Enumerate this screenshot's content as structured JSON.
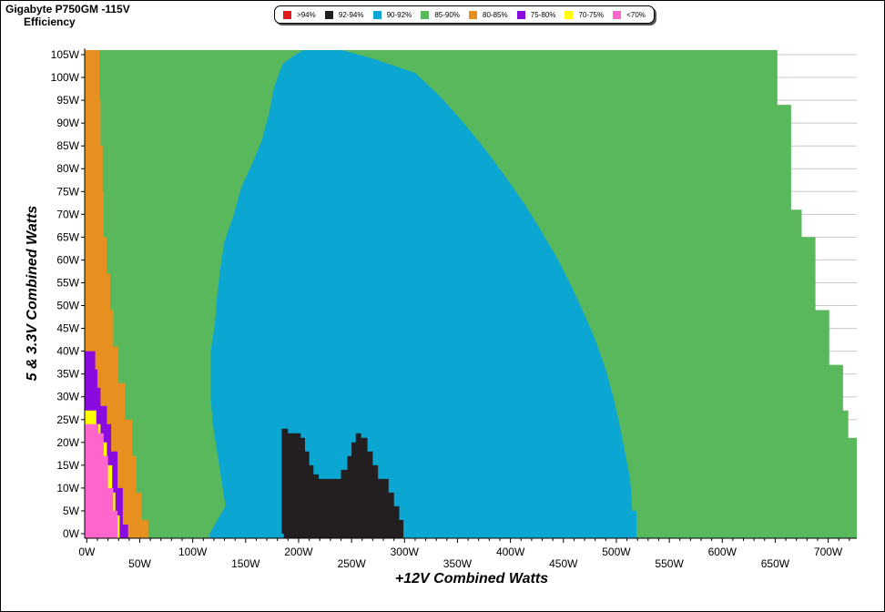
{
  "title": {
    "line1": "Gigabyte P750GM -115V",
    "line2": "Efficiency"
  },
  "legend": [
    {
      "label": ">94%",
      "color": "#e31a1c"
    },
    {
      "label": "92-94%",
      "color": "#231f20"
    },
    {
      "label": "90-92%",
      "color": "#0ba6d1"
    },
    {
      "label": "85-90%",
      "color": "#59b85c"
    },
    {
      "label": "80-85%",
      "color": "#e8901f"
    },
    {
      "label": "75-80%",
      "color": "#8a0be0"
    },
    {
      "label": "70-75%",
      "color": "#ffff00"
    },
    {
      "label": "<70%",
      "color": "#ff66cc"
    }
  ],
  "chart_data": {
    "type": "heatmap",
    "xlabel": "+12V Combined Watts",
    "ylabel": "5 & 3.3V Combined Watts",
    "xlim": [
      -2,
      727
    ],
    "ylim": [
      -1,
      106
    ],
    "x_ticks": [
      "0W",
      "50W",
      "100W",
      "150W",
      "200W",
      "250W",
      "300W",
      "350W",
      "400W",
      "450W",
      "500W",
      "550W",
      "600W",
      "650W",
      "700W"
    ],
    "x_tick_values": [
      0,
      50,
      100,
      150,
      200,
      250,
      300,
      350,
      400,
      450,
      500,
      550,
      600,
      650,
      700
    ],
    "y_ticks": [
      "0W",
      "5W",
      "10W",
      "15W",
      "20W",
      "25W",
      "30W",
      "35W",
      "40W",
      "45W",
      "50W",
      "55W",
      "60W",
      "65W",
      "70W",
      "75W",
      "80W",
      "85W",
      "90W",
      "95W",
      "100W",
      "105W"
    ],
    "y_tick_values": [
      0,
      5,
      10,
      15,
      20,
      25,
      30,
      35,
      40,
      45,
      50,
      55,
      60,
      65,
      70,
      75,
      80,
      85,
      90,
      95,
      100,
      105
    ],
    "grid": "horizontal",
    "regions": [
      {
        "name": "85-90%",
        "color": "#59b85c",
        "points": [
          [
            -2,
            -1
          ],
          [
            727,
            -1
          ],
          [
            727,
            21
          ],
          [
            719,
            21
          ],
          [
            719,
            27
          ],
          [
            714,
            27
          ],
          [
            714,
            37
          ],
          [
            701,
            37
          ],
          [
            701,
            49
          ],
          [
            688,
            49
          ],
          [
            688,
            65
          ],
          [
            675,
            65
          ],
          [
            675,
            71
          ],
          [
            665,
            71
          ],
          [
            665,
            94
          ],
          [
            652,
            94
          ],
          [
            652,
            106
          ],
          [
            -2,
            106
          ]
        ]
      },
      {
        "name": "80-85%",
        "color": "#e8901f",
        "points": [
          [
            -2,
            -1
          ],
          [
            58,
            -1
          ],
          [
            58,
            3
          ],
          [
            52,
            3
          ],
          [
            52,
            9
          ],
          [
            47,
            9
          ],
          [
            47,
            17
          ],
          [
            43,
            17
          ],
          [
            43,
            25
          ],
          [
            36,
            25
          ],
          [
            36,
            33
          ],
          [
            30,
            33
          ],
          [
            30,
            41
          ],
          [
            25,
            41
          ],
          [
            25,
            49
          ],
          [
            22,
            49
          ],
          [
            22,
            57
          ],
          [
            19,
            57
          ],
          [
            19,
            65
          ],
          [
            16,
            65
          ],
          [
            16,
            75
          ],
          [
            15,
            75
          ],
          [
            15,
            85
          ],
          [
            13,
            85
          ],
          [
            13,
            95
          ],
          [
            12,
            95
          ],
          [
            12,
            106
          ],
          [
            -2,
            106
          ]
        ]
      },
      {
        "name": "90-92%",
        "color": "#0ba6d1",
        "points": [
          [
            116,
            -1
          ],
          [
            519,
            -1
          ],
          [
            519,
            5
          ],
          [
            515,
            5
          ],
          [
            513,
            12
          ],
          [
            508,
            18
          ],
          [
            503,
            24
          ],
          [
            497,
            30
          ],
          [
            490,
            36
          ],
          [
            481,
            42
          ],
          [
            470,
            48
          ],
          [
            458,
            54
          ],
          [
            445,
            60
          ],
          [
            430,
            66
          ],
          [
            414,
            72
          ],
          [
            396,
            78
          ],
          [
            377,
            84
          ],
          [
            356,
            90
          ],
          [
            333,
            96
          ],
          [
            310,
            101
          ],
          [
            272,
            104
          ],
          [
            241,
            106
          ],
          [
            205,
            106
          ],
          [
            197,
            105
          ],
          [
            185,
            103
          ],
          [
            177,
            98
          ],
          [
            172,
            92
          ],
          [
            165,
            86
          ],
          [
            156,
            81
          ],
          [
            146,
            76
          ],
          [
            139,
            70
          ],
          [
            130,
            64
          ],
          [
            126,
            58
          ],
          [
            123,
            52
          ],
          [
            121,
            46
          ],
          [
            117,
            40
          ],
          [
            117,
            30
          ],
          [
            119,
            24
          ],
          [
            123,
            18
          ],
          [
            127,
            12
          ],
          [
            131,
            6
          ],
          [
            116,
            0
          ]
        ]
      },
      {
        "name": "92-94%",
        "color": "#231f20",
        "points": [
          [
            186,
            -1
          ],
          [
            299,
            -1
          ],
          [
            299,
            3
          ],
          [
            295,
            3
          ],
          [
            295,
            6
          ],
          [
            290,
            6
          ],
          [
            290,
            9
          ],
          [
            285,
            9
          ],
          [
            285,
            12
          ],
          [
            275,
            12
          ],
          [
            275,
            15
          ],
          [
            270,
            15
          ],
          [
            270,
            18
          ],
          [
            265,
            18
          ],
          [
            265,
            21
          ],
          [
            259,
            21
          ],
          [
            259,
            22
          ],
          [
            254,
            22
          ],
          [
            254,
            20
          ],
          [
            250,
            20
          ],
          [
            250,
            17
          ],
          [
            246,
            17
          ],
          [
            246,
            14
          ],
          [
            240,
            14
          ],
          [
            240,
            12
          ],
          [
            219,
            12
          ],
          [
            219,
            13
          ],
          [
            214,
            13
          ],
          [
            214,
            15
          ],
          [
            210,
            15
          ],
          [
            210,
            18
          ],
          [
            206,
            18
          ],
          [
            206,
            21
          ],
          [
            202,
            21
          ],
          [
            202,
            22
          ],
          [
            190,
            22
          ],
          [
            190,
            23
          ],
          [
            184,
            23
          ],
          [
            184,
            0
          ],
          [
            186,
            0
          ]
        ]
      },
      {
        "name": "75-80%",
        "color": "#8a0be0",
        "points": [
          [
            -2,
            -1
          ],
          [
            39,
            -1
          ],
          [
            39,
            2
          ],
          [
            34,
            2
          ],
          [
            34,
            10
          ],
          [
            29,
            10
          ],
          [
            29,
            18
          ],
          [
            23,
            18
          ],
          [
            23,
            24
          ],
          [
            19,
            24
          ],
          [
            19,
            28
          ],
          [
            13,
            28
          ],
          [
            13,
            32
          ],
          [
            10,
            32
          ],
          [
            10,
            36
          ],
          [
            8,
            36
          ],
          [
            8,
            40
          ],
          [
            -2,
            40
          ]
        ]
      },
      {
        "name": "70-75%",
        "color": "#ffff00",
        "points": [
          [
            -2,
            -1
          ],
          [
            31,
            -1
          ],
          [
            31,
            4
          ],
          [
            27,
            4
          ],
          [
            27,
            9
          ],
          [
            24,
            9
          ],
          [
            24,
            15
          ],
          [
            19,
            15
          ],
          [
            19,
            20
          ],
          [
            13,
            20
          ],
          [
            13,
            24
          ],
          [
            9,
            24
          ],
          [
            9,
            27
          ],
          [
            -2,
            27
          ]
        ]
      },
      {
        "name": "<70%",
        "color": "#ff66cc",
        "points": [
          [
            -2,
            -1
          ],
          [
            29,
            -1
          ],
          [
            29,
            5
          ],
          [
            25,
            5
          ],
          [
            25,
            10
          ],
          [
            20,
            10
          ],
          [
            20,
            17
          ],
          [
            16,
            17
          ],
          [
            16,
            22
          ],
          [
            11,
            22
          ],
          [
            11,
            24
          ],
          [
            -2,
            24
          ]
        ]
      }
    ]
  }
}
